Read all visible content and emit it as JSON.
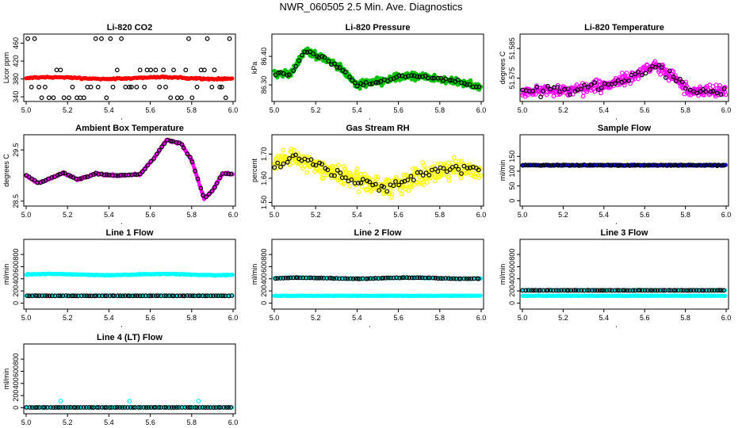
{
  "page": {
    "title": "NWR_060505  2.5 Min. Ave. Diagnostics"
  },
  "chart_data": [
    {
      "id": "co2",
      "type": "scatter",
      "title": "Li-820 CO2",
      "ylabel": "Licor ppm",
      "xlim": [
        5.0,
        6.0
      ],
      "ylim": [
        335,
        475
      ],
      "xticks": [
        5.0,
        5.2,
        5.4,
        5.6,
        5.8,
        6.0
      ],
      "xtick_labels": [
        "5.0",
        "5.2",
        "5.4",
        "5.6",
        "5.8",
        "6.0"
      ],
      "yticks": [
        340,
        380,
        420,
        460
      ],
      "ytick_labels": [
        "340",
        "380",
        "420",
        "460"
      ],
      "series": [
        {
          "color": "#ff0000",
          "filled": true,
          "gen": {
            "kind": "band",
            "n": 180,
            "base": 382,
            "noise": 1.5,
            "wobble": 2
          }
        },
        {
          "color": "#000000",
          "filled": false,
          "gen": {
            "kind": "levels",
            "n": 55,
            "levels": [
              338,
              362,
              400,
              470
            ]
          }
        }
      ]
    },
    {
      "id": "pressure",
      "type": "scatter",
      "title": "Li-820 Pressure",
      "ylabel": "kPa",
      "xlim": [
        5.0,
        6.0
      ],
      "ylim": [
        86.25,
        86.47
      ],
      "xticks": [
        5.0,
        5.2,
        5.4,
        5.6,
        5.8,
        6.0
      ],
      "xtick_labels": [
        "5.0",
        "5.2",
        "5.4",
        "5.6",
        "5.8",
        "6.0"
      ],
      "yticks": [
        86.3,
        86.4
      ],
      "ytick_labels": [
        "86.30",
        "86.40"
      ],
      "profile": [
        [
          5.0,
          86.34
        ],
        [
          5.08,
          86.34
        ],
        [
          5.15,
          86.42
        ],
        [
          5.25,
          86.39
        ],
        [
          5.32,
          86.36
        ],
        [
          5.4,
          86.3
        ],
        [
          5.5,
          86.31
        ],
        [
          5.6,
          86.33
        ],
        [
          5.7,
          86.33
        ],
        [
          5.8,
          86.32
        ],
        [
          5.9,
          86.31
        ],
        [
          6.0,
          86.29
        ]
      ],
      "series": [
        {
          "color": "#00c000",
          "filled": true,
          "gen": {
            "kind": "profile",
            "n": 500,
            "noise": 0.012
          }
        },
        {
          "color": "#000000",
          "filled": false,
          "gen": {
            "kind": "profile",
            "n": 70,
            "noise": 0.006
          }
        }
      ]
    },
    {
      "id": "temperature",
      "type": "scatter",
      "title": "Li-820 Temperature",
      "ylabel": "degrees C",
      "xlim": [
        5.0,
        6.0
      ],
      "ylim": [
        51.568,
        51.589
      ],
      "xticks": [
        5.0,
        5.2,
        5.4,
        5.6,
        5.8,
        6.0
      ],
      "xtick_labels": [
        "5.0",
        "5.2",
        "5.4",
        "5.6",
        "5.8",
        "6.0"
      ],
      "yticks": [
        51.575,
        51.585
      ],
      "ytick_labels": [
        "51.575",
        "51.585"
      ],
      "profile": [
        [
          5.0,
          51.5705
        ],
        [
          5.3,
          51.5715
        ],
        [
          5.45,
          51.5735
        ],
        [
          5.55,
          51.5755
        ],
        [
          5.65,
          51.5795
        ],
        [
          5.75,
          51.575
        ],
        [
          5.82,
          51.5705
        ],
        [
          6.0,
          51.5705
        ]
      ],
      "series": [
        {
          "color": "#ff00ff",
          "filled": false,
          "gen": {
            "kind": "profile",
            "n": 380,
            "noise": 0.0018
          }
        },
        {
          "color": "#000000",
          "filled": false,
          "gen": {
            "kind": "profile",
            "n": 60,
            "noise": 0.0015
          }
        }
      ]
    },
    {
      "id": "ambient",
      "type": "scatter",
      "title": "Ambient Box Temperature",
      "ylabel": "degrees C",
      "xlim": [
        5.0,
        6.0
      ],
      "ylim": [
        28.45,
        29.75
      ],
      "xticks": [
        5.0,
        5.2,
        5.4,
        5.6,
        5.8,
        6.0
      ],
      "xtick_labels": [
        "5.0",
        "5.2",
        "5.4",
        "5.6",
        "5.8",
        "6.0"
      ],
      "yticks": [
        28.5,
        29.5
      ],
      "ytick_labels": [
        "28.5",
        "29.5"
      ],
      "profile": [
        [
          5.0,
          29.0
        ],
        [
          5.06,
          28.85
        ],
        [
          5.12,
          28.95
        ],
        [
          5.18,
          29.05
        ],
        [
          5.25,
          28.92
        ],
        [
          5.34,
          29.04
        ],
        [
          5.42,
          29.0
        ],
        [
          5.55,
          29.02
        ],
        [
          5.62,
          29.35
        ],
        [
          5.68,
          29.7
        ],
        [
          5.75,
          29.62
        ],
        [
          5.8,
          29.3
        ],
        [
          5.86,
          28.55
        ],
        [
          5.9,
          28.7
        ],
        [
          5.95,
          29.05
        ],
        [
          6.0,
          29.02
        ]
      ],
      "series": [
        {
          "color": "#ff00ff",
          "filled": true,
          "gen": {
            "kind": "profile",
            "n": 300,
            "noise": 0.015
          }
        },
        {
          "color": "#000000",
          "filled": false,
          "gen": {
            "kind": "profile",
            "n": 75,
            "noise": 0.01
          }
        }
      ]
    },
    {
      "id": "rh",
      "type": "scatter",
      "title": "Gas Stream RH",
      "ylabel": "percent",
      "xlim": [
        5.0,
        6.0
      ],
      "ylim": [
        1.495,
        1.77
      ],
      "xticks": [
        5.0,
        5.2,
        5.4,
        5.6,
        5.8,
        6.0
      ],
      "xtick_labels": [
        "5.0",
        "5.2",
        "5.4",
        "5.6",
        "5.8",
        "6.0"
      ],
      "yticks": [
        1.5,
        1.6,
        1.7
      ],
      "ytick_labels": [
        "1.50",
        "1.60",
        "1.70"
      ],
      "profile": [
        [
          5.0,
          1.66
        ],
        [
          5.1,
          1.69
        ],
        [
          5.2,
          1.65
        ],
        [
          5.3,
          1.62
        ],
        [
          5.45,
          1.58
        ],
        [
          5.55,
          1.56
        ],
        [
          5.7,
          1.61
        ],
        [
          5.85,
          1.64
        ],
        [
          6.0,
          1.63
        ]
      ],
      "series": [
        {
          "color": "#ffff00",
          "filled": false,
          "gen": {
            "kind": "profile",
            "n": 420,
            "noise": 0.035
          }
        },
        {
          "color": "#000000",
          "filled": false,
          "gen": {
            "kind": "profile",
            "n": 70,
            "noise": 0.02
          }
        }
      ]
    },
    {
      "id": "sample",
      "type": "scatter",
      "title": "Sample Flow",
      "ylabel": "ml/min",
      "xlim": [
        5.0,
        6.0
      ],
      "ylim": [
        -10,
        215
      ],
      "xticks": [
        5.0,
        5.2,
        5.4,
        5.6,
        5.8,
        6.0
      ],
      "xtick_labels": [
        "5.0",
        "5.2",
        "5.4",
        "5.6",
        "5.8",
        "6.0"
      ],
      "yticks": [
        0,
        50,
        100,
        150
      ],
      "ytick_labels": [
        "0",
        "50",
        "100",
        "150"
      ],
      "series": [
        {
          "color": "#0000ff",
          "filled": true,
          "gen": {
            "kind": "band",
            "n": 260,
            "base": 120,
            "noise": 1.5,
            "wobble": 0
          }
        },
        {
          "color": "#000000",
          "filled": false,
          "gen": {
            "kind": "band",
            "n": 80,
            "base": 120,
            "noise": 1.2,
            "wobble": 0
          }
        }
      ]
    },
    {
      "id": "line1",
      "type": "scatter",
      "title": "Line 1 Flow",
      "ylabel": "ml/min",
      "xlim": [
        5.0,
        6.0
      ],
      "ylim": [
        -60,
        1010
      ],
      "xticks": [
        5.0,
        5.2,
        5.4,
        5.6,
        5.8,
        6.0
      ],
      "xtick_labels": [
        "5.0",
        "5.2",
        "5.4",
        "5.6",
        "5.8",
        "6.0"
      ],
      "yticks": [
        0,
        200,
        400,
        600,
        800
      ],
      "ytick_labels": [
        "0",
        "200",
        "400",
        "600",
        "800"
      ],
      "series": [
        {
          "color": "#00ffff",
          "filled": true,
          "gen": {
            "kind": "band",
            "n": 260,
            "base": 470,
            "noise": 6,
            "wobble": 10
          }
        },
        {
          "color": "#00ffff",
          "filled": true,
          "gen": {
            "kind": "band",
            "n": 200,
            "base": 120,
            "noise": 3,
            "wobble": 0
          }
        },
        {
          "color": "#000000",
          "filled": false,
          "gen": {
            "kind": "band",
            "n": 80,
            "base": 120,
            "noise": 2,
            "wobble": 0
          }
        }
      ]
    },
    {
      "id": "line2",
      "type": "scatter",
      "title": "Line 2 Flow",
      "ylabel": "ml/min",
      "xlim": [
        5.0,
        6.0
      ],
      "ylim": [
        -60,
        1010
      ],
      "xticks": [
        5.0,
        5.2,
        5.4,
        5.6,
        5.8,
        6.0
      ],
      "xtick_labels": [
        "5.0",
        "5.2",
        "5.4",
        "5.6",
        "5.8",
        "6.0"
      ],
      "yticks": [
        0,
        200,
        400,
        600,
        800
      ],
      "ytick_labels": [
        "0",
        "200",
        "400",
        "600",
        "800"
      ],
      "series": [
        {
          "color": "#00ffff",
          "filled": true,
          "gen": {
            "kind": "band",
            "n": 260,
            "base": 410,
            "noise": 5,
            "wobble": 8
          }
        },
        {
          "color": "#00ffff",
          "filled": true,
          "gen": {
            "kind": "band",
            "n": 200,
            "base": 120,
            "noise": 3,
            "wobble": 0
          }
        },
        {
          "color": "#000000",
          "filled": false,
          "gen": {
            "kind": "band",
            "n": 80,
            "base": 410,
            "noise": 4,
            "wobble": 8
          }
        }
      ]
    },
    {
      "id": "line3",
      "type": "scatter",
      "title": "Line 3 Flow",
      "ylabel": "ml/min",
      "xlim": [
        5.0,
        6.0
      ],
      "ylim": [
        -60,
        1010
      ],
      "xticks": [
        5.0,
        5.2,
        5.4,
        5.6,
        5.8,
        6.0
      ],
      "xtick_labels": [
        "5.0",
        "5.2",
        "5.4",
        "5.6",
        "5.8",
        "6.0"
      ],
      "yticks": [
        0,
        200,
        400,
        600,
        800
      ],
      "ytick_labels": [
        "0",
        "200",
        "400",
        "600",
        "800"
      ],
      "series": [
        {
          "color": "#00ffff",
          "filled": true,
          "gen": {
            "kind": "band",
            "n": 200,
            "base": 210,
            "noise": 3,
            "wobble": 0
          }
        },
        {
          "color": "#00ffff",
          "filled": true,
          "gen": {
            "kind": "band",
            "n": 200,
            "base": 120,
            "noise": 3,
            "wobble": 0
          }
        },
        {
          "color": "#000000",
          "filled": false,
          "gen": {
            "kind": "band",
            "n": 80,
            "base": 210,
            "noise": 2,
            "wobble": 0
          }
        }
      ]
    },
    {
      "id": "line4",
      "type": "scatter",
      "title": "Line 4 (LT) Flow",
      "ylabel": "ml/min",
      "xlim": [
        5.0,
        6.0
      ],
      "ylim": [
        -60,
        1010
      ],
      "xticks": [
        5.0,
        5.2,
        5.4,
        5.6,
        5.8,
        6.0
      ],
      "xtick_labels": [
        "5.0",
        "5.2",
        "5.4",
        "5.6",
        "5.8",
        "6.0"
      ],
      "yticks": [
        0,
        200,
        400,
        600,
        800
      ],
      "ytick_labels": [
        "0",
        "200",
        "400",
        "600",
        "800"
      ],
      "series": [
        {
          "color": "#00ffff",
          "filled": true,
          "gen": {
            "kind": "band",
            "n": 200,
            "base": 5,
            "noise": 1.5,
            "wobble": 0
          }
        },
        {
          "color": "#00ffff",
          "filled": false,
          "gen": {
            "kind": "points",
            "x": [
              5.167,
              5.5,
              5.833
            ],
            "y": [
              110,
              110,
              110
            ]
          }
        },
        {
          "color": "#000000",
          "filled": false,
          "gen": {
            "kind": "band",
            "n": 80,
            "base": 5,
            "noise": 1,
            "wobble": 0
          }
        }
      ]
    }
  ]
}
